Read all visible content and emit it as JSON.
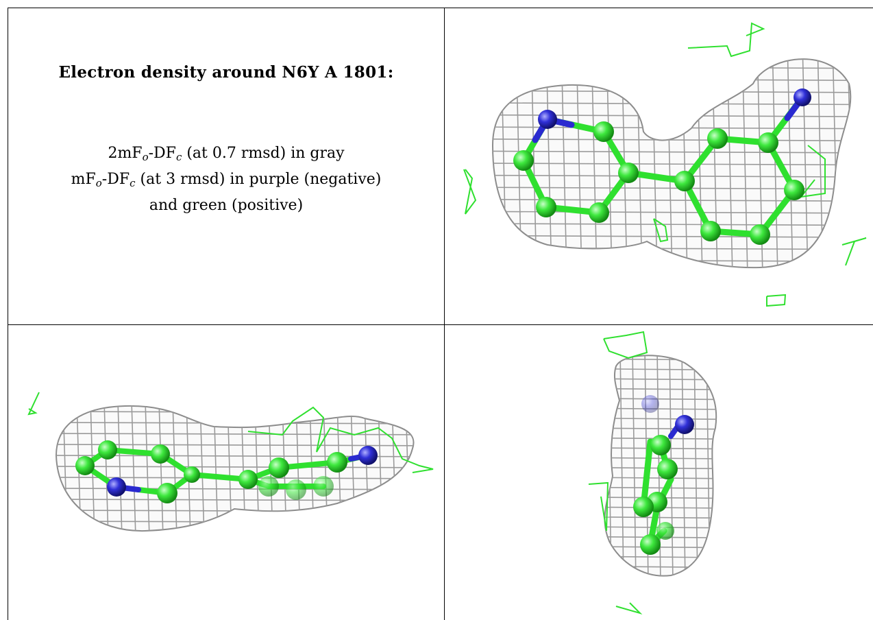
{
  "title": "Electron density around N6Y A 1801:",
  "legend": {
    "line1": {
      "prefix": "2mF",
      "sub1": "o",
      "mid": "-DF",
      "sub2": "c",
      "suffix": " (at 0.7 rmsd) in gray"
    },
    "line2": {
      "prefix": "mF",
      "sub1": "o",
      "mid": "-DF",
      "sub2": "c",
      "suffix": " (at 3 rmsd) in purple (negative)"
    },
    "line3": "and green (positive)"
  },
  "colors": {
    "mesh": "#9a9a9a",
    "carbon": "#3ee83e",
    "nitrogen": "#2a2ad0",
    "difference_positive": "#2fe02f",
    "grid_lines": "#000000"
  },
  "views": [
    {
      "name": "top-right-view",
      "description_icon": "electron-density-mesh"
    },
    {
      "name": "bottom-left-view",
      "description_icon": "electron-density-mesh"
    },
    {
      "name": "bottom-right-view",
      "description_icon": "electron-density-mesh"
    }
  ]
}
